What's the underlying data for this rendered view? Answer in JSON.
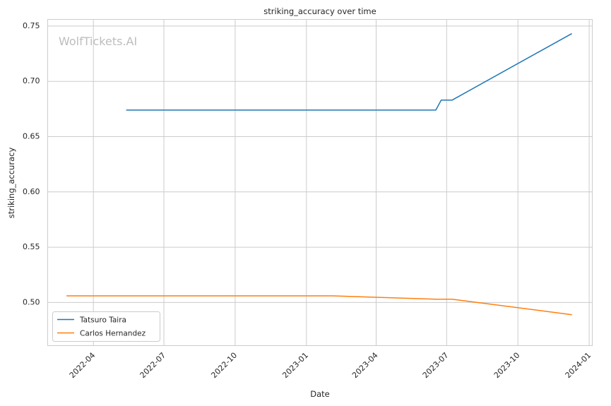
{
  "chart_data": {
    "type": "line",
    "title": "striking_accuracy over time",
    "xlabel": "Date",
    "ylabel": "striking_accuracy",
    "watermark": "WolfTickets.AI",
    "grid": true,
    "legend_position": "lower-left",
    "xlim": [
      "2022-02-01",
      "2024-01-05"
    ],
    "ylim": [
      0.461,
      0.756
    ],
    "x_ticks": [
      "2022-04",
      "2022-07",
      "2022-10",
      "2023-01",
      "2023-04",
      "2023-07",
      "2023-10",
      "2024-01"
    ],
    "x_tick_dates": [
      "2022-04-01",
      "2022-07-01",
      "2022-10-01",
      "2023-01-01",
      "2023-04-01",
      "2023-07-01",
      "2023-10-01",
      "2024-01-01"
    ],
    "y_ticks": [
      "0.50",
      "0.55",
      "0.60",
      "0.65",
      "0.70",
      "0.75"
    ],
    "y_tick_values": [
      0.5,
      0.55,
      0.6,
      0.65,
      0.7,
      0.75
    ],
    "series": [
      {
        "name": "Tatsuro Taira",
        "color": "#1f77b4",
        "x": [
          "2022-05-14",
          "2023-06-17",
          "2023-06-24",
          "2023-07-08",
          "2023-12-09"
        ],
        "y": [
          0.674,
          0.674,
          0.683,
          0.683,
          0.743
        ]
      },
      {
        "name": "Carlos Hernandez",
        "color": "#ff7f0e",
        "x": [
          "2022-02-26",
          "2023-02-04",
          "2023-06-17",
          "2023-07-08",
          "2023-12-09"
        ],
        "y": [
          0.506,
          0.506,
          0.503,
          0.503,
          0.489
        ]
      }
    ]
  }
}
